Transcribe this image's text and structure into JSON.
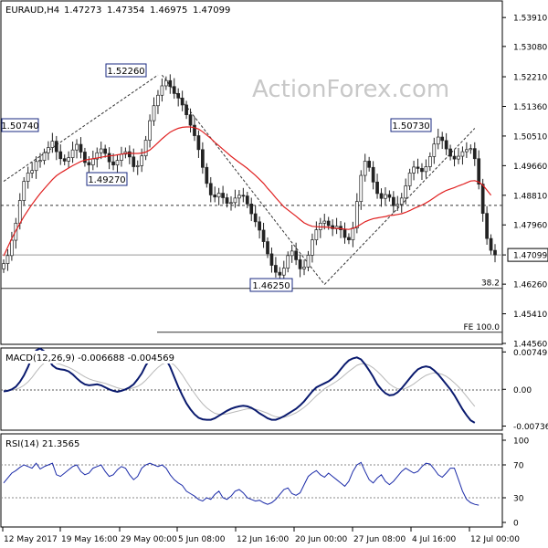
{
  "chart_data": [
    {
      "panel": "price",
      "type": "candlestick",
      "header": {
        "symbol": "EURAUD,H4",
        "open": "1.47273",
        "high": "1.47354",
        "low": "1.46975",
        "close": "1.47099"
      },
      "watermark": "ActionForex.com",
      "y_ticks": [
        "1.53910",
        "1.53080",
        "1.52210",
        "1.51360",
        "1.50510",
        "1.49660",
        "1.48810",
        "1.47960",
        "1.47099",
        "1.46260",
        "1.45410",
        "1.44560"
      ],
      "ylim": [
        1.4456,
        1.5436
      ],
      "swing_labels": [
        {
          "label": "1.52260",
          "price": 1.5226
        },
        {
          "label": "1.50740",
          "price": 1.5074
        },
        {
          "label": "1.49270",
          "price": 1.4927
        },
        {
          "label": "1.46250",
          "price": 1.4625
        },
        {
          "label": "1.50730",
          "price": 1.5073
        }
      ],
      "horizontal_lines": [
        {
          "label": "1.48520",
          "price": 1.4852,
          "style": "dashed"
        },
        {
          "label": "1.47099",
          "price": 1.47099,
          "style": "solid"
        },
        {
          "label": "38.2",
          "price": 1.4614,
          "style": "solid"
        },
        {
          "label": "FE 100.0",
          "price": 1.4488,
          "style": "solid"
        }
      ],
      "close_series": [
        1.4685,
        1.4708,
        1.4752,
        1.4801,
        1.4866,
        1.4921,
        1.4945,
        1.4952,
        1.4978,
        1.4981,
        1.5003,
        1.5018,
        1.5036,
        1.5006,
        1.4986,
        1.4979,
        1.4989,
        1.5011,
        1.5027,
        1.5005,
        1.4975,
        1.4968,
        1.4985,
        1.5003,
        1.5014,
        1.5001,
        1.4977,
        1.4968,
        1.4981,
        1.4999,
        1.5006,
        1.4991,
        1.4963,
        1.4966,
        1.4994,
        1.5039,
        1.5095,
        1.5138,
        1.5168,
        1.5195,
        1.521,
        1.5193,
        1.5173,
        1.516,
        1.514,
        1.5112,
        1.5082,
        1.5052,
        1.5012,
        1.4961,
        1.4915,
        1.4882,
        1.4876,
        1.4887,
        1.4874,
        1.4858,
        1.486,
        1.4873,
        1.4881,
        1.4879,
        1.4856,
        1.4828,
        1.4805,
        1.4781,
        1.4748,
        1.4713,
        1.468,
        1.466,
        1.4652,
        1.4672,
        1.4708,
        1.4721,
        1.4696,
        1.467,
        1.4675,
        1.4709,
        1.4753,
        1.4782,
        1.4801,
        1.4807,
        1.4794,
        1.4785,
        1.4792,
        1.4782,
        1.476,
        1.4753,
        1.4787,
        1.4863,
        1.4938,
        1.4979,
        1.4961,
        1.4919,
        1.4886,
        1.4872,
        1.4883,
        1.4875,
        1.4851,
        1.4855,
        1.4873,
        1.4908,
        1.4945,
        1.4962,
        1.4958,
        1.4949,
        1.4963,
        1.4992,
        1.5028,
        1.5048,
        1.5038,
        1.5014,
        1.4993,
        1.4985,
        1.4993,
        1.5006,
        1.5012,
        1.5015,
        1.4986,
        1.4913,
        1.4829,
        1.4757,
        1.4723,
        1.471
      ],
      "ma_series": [
        1.4707,
        1.4732,
        1.4757,
        1.4779,
        1.48,
        1.482,
        1.4838,
        1.4855,
        1.4871,
        1.4886,
        1.49,
        1.4913,
        1.4926,
        1.4937,
        1.4945,
        1.4952,
        1.4959,
        1.4966,
        1.4972,
        1.4978,
        1.4982,
        1.4984,
        1.4986,
        1.4988,
        1.499,
        1.4992,
        1.4994,
        1.4995,
        1.4997,
        1.4999,
        1.5001,
        1.5002,
        1.5001,
        1.5001,
        1.5002,
        1.5005,
        1.5011,
        1.5021,
        1.5032,
        1.5043,
        1.5053,
        1.5062,
        1.5068,
        1.5073,
        1.5076,
        1.5077,
        1.5077,
        1.5075,
        1.5071,
        1.5063,
        1.5054,
        1.5044,
        1.5033,
        1.5023,
        1.5013,
        1.5003,
        1.4993,
        1.4984,
        1.4975,
        1.4967,
        1.4958,
        1.4948,
        1.4938,
        1.4927,
        1.4915,
        1.4901,
        1.4888,
        1.4874,
        1.4861,
        1.4848,
        1.4839,
        1.483,
        1.4821,
        1.4811,
        1.4802,
        1.4796,
        1.4792,
        1.4791,
        1.479,
        1.479,
        1.4789,
        1.4787,
        1.4786,
        1.4785,
        1.4784,
        1.4783,
        1.4786,
        1.4791,
        1.4798,
        1.4805,
        1.481,
        1.4814,
        1.4816,
        1.4818,
        1.482,
        1.4823,
        1.4824,
        1.4826,
        1.4828,
        1.4832,
        1.4837,
        1.4843,
        1.4848,
        1.4853,
        1.4859,
        1.4866,
        1.4874,
        1.4882,
        1.4889,
        1.4895,
        1.4899,
        1.4903,
        1.4908,
        1.4912,
        1.4917,
        1.4922,
        1.4923,
        1.4919,
        1.491,
        1.4896,
        1.4881
      ]
    },
    {
      "panel": "macd",
      "type": "line",
      "header": "MACD(12,26,9) -0.006688 -0.004569",
      "y_ticks": [
        "0.00749",
        "0.00",
        "-0.007363"
      ],
      "ylim": [
        -0.008,
        0.0081
      ],
      "series": [
        {
          "values": [
            -0.0004,
            -0.0003,
            0.0,
            0.0005,
            0.0015,
            0.0028,
            0.0045,
            0.0065,
            0.0078,
            0.0082,
            0.0076,
            0.0061,
            0.0048,
            0.0042,
            0.004,
            0.0039,
            0.0036,
            0.003,
            0.0022,
            0.0015,
            0.001,
            0.0008,
            0.0009,
            0.001,
            0.0008,
            0.0004,
            0.0,
            -0.0003,
            -0.0005,
            -0.0003,
            0.0,
            0.0004,
            0.001,
            0.002,
            0.0032,
            0.0048,
            0.006,
            0.0068,
            0.007,
            0.0068,
            0.006,
            0.0045,
            0.0025,
            0.0005,
            -0.0012,
            -0.0028,
            -0.004,
            -0.005,
            -0.0057,
            -0.006,
            -0.0061,
            -0.0061,
            -0.0058,
            -0.0053,
            -0.0048,
            -0.0043,
            -0.0039,
            -0.0036,
            -0.0034,
            -0.0033,
            -0.0034,
            -0.0037,
            -0.0042,
            -0.0048,
            -0.0053,
            -0.0058,
            -0.0061,
            -0.0061,
            -0.0058,
            -0.0054,
            -0.0049,
            -0.0044,
            -0.0039,
            -0.0032,
            -0.0024,
            -0.0014,
            -0.0004,
            0.0004,
            0.0008,
            0.0012,
            0.0016,
            0.0022,
            0.003,
            0.004,
            0.005,
            0.0058,
            0.0062,
            0.0064,
            0.006,
            0.005,
            0.0038,
            0.0025,
            0.001,
            0.0,
            -0.0008,
            -0.0012,
            -0.0011,
            -0.0006,
            0.0002,
            0.0012,
            0.0022,
            0.0032,
            0.004,
            0.0044,
            0.0046,
            0.0044,
            0.0038,
            0.003,
            0.002,
            0.001,
            0.0,
            -0.0012,
            -0.0026,
            -0.004,
            -0.0052,
            -0.0062,
            -0.0067
          ]
        },
        {
          "values": [
            -0.0002,
            -0.0002,
            -0.0001,
            0.0,
            0.0003,
            0.0008,
            0.0015,
            0.0024,
            0.0035,
            0.0045,
            0.0053,
            0.0056,
            0.0055,
            0.0052,
            0.005,
            0.0047,
            0.0044,
            0.004,
            0.0035,
            0.003,
            0.0025,
            0.0021,
            0.0018,
            0.0016,
            0.0014,
            0.0012,
            0.0009,
            0.0006,
            0.0003,
            0.0001,
            0.0,
            0.0001,
            0.0003,
            0.0006,
            0.0011,
            0.0018,
            0.0027,
            0.0036,
            0.0044,
            0.005,
            0.0054,
            0.0054,
            0.0049,
            0.004,
            0.0029,
            0.0016,
            0.0004,
            -0.0008,
            -0.0019,
            -0.0029,
            -0.0037,
            -0.0043,
            -0.0048,
            -0.005,
            -0.005,
            -0.0049,
            -0.0047,
            -0.0045,
            -0.0043,
            -0.0041,
            -0.0039,
            -0.0039,
            -0.004,
            -0.0042,
            -0.0045,
            -0.0048,
            -0.0052,
            -0.0055,
            -0.0056,
            -0.0056,
            -0.0054,
            -0.0051,
            -0.0047,
            -0.0042,
            -0.0036,
            -0.0029,
            -0.0021,
            -0.0013,
            -0.0006,
            0.0001,
            0.0006,
            0.0011,
            0.0016,
            0.0022,
            0.0029,
            0.0036,
            0.0042,
            0.0048,
            0.0051,
            0.0051,
            0.0048,
            0.0043,
            0.0036,
            0.0028,
            0.0019,
            0.0011,
            0.0005,
            0.0001,
            0.0,
            0.0002,
            0.0006,
            0.0011,
            0.0017,
            0.0023,
            0.0028,
            0.0031,
            0.0033,
            0.0032,
            0.003,
            0.0026,
            0.002,
            0.0013,
            0.0005,
            -0.0004,
            -0.0014,
            -0.0024,
            -0.0034
          ]
        }
      ]
    },
    {
      "panel": "rsi",
      "type": "line",
      "header": "RSI(14) 21.3565",
      "y_ticks": [
        "100",
        "70",
        "30",
        "0"
      ],
      "ylim": [
        0,
        100
      ],
      "levels": [
        70,
        30
      ],
      "series": [
        {
          "values": [
            48,
            54,
            60,
            63,
            67,
            70,
            68,
            66,
            72,
            65,
            68,
            70,
            72,
            58,
            56,
            60,
            64,
            68,
            70,
            62,
            58,
            60,
            66,
            68,
            70,
            62,
            56,
            58,
            64,
            68,
            66,
            58,
            52,
            56,
            66,
            70,
            72,
            70,
            68,
            70,
            66,
            58,
            52,
            48,
            45,
            38,
            35,
            32,
            28,
            26,
            30,
            28,
            34,
            38,
            30,
            28,
            32,
            38,
            40,
            36,
            30,
            28,
            26,
            27,
            24,
            22,
            24,
            28,
            34,
            40,
            42,
            35,
            33,
            36,
            46,
            56,
            60,
            63,
            58,
            55,
            60,
            56,
            52,
            48,
            44,
            50,
            62,
            70,
            73,
            62,
            52,
            48,
            54,
            58,
            50,
            46,
            50,
            56,
            62,
            66,
            63,
            60,
            62,
            68,
            72,
            71,
            65,
            58,
            55,
            60,
            66,
            66,
            52,
            38,
            28,
            24,
            22,
            21
          ]
        }
      ]
    },
    {
      "panel": "x-axis",
      "type": "axis",
      "x_labels": [
        "12 May 2017",
        "19 May 16:00",
        "29 May 00:00",
        "5 Jun 08:00",
        "12 Jun 16:00",
        "20 Jun 00:00",
        "27 Jun 08:00",
        "4 Jul 16:00",
        "12 Jul 00:00"
      ]
    }
  ]
}
